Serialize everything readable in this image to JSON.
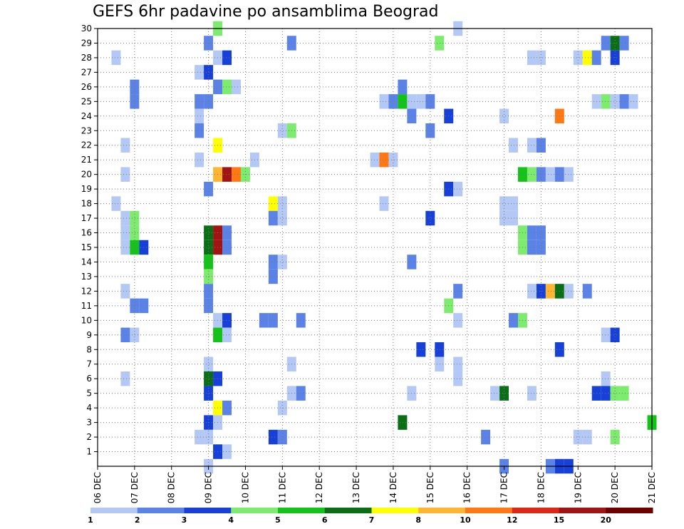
{
  "chart_data": {
    "type": "heatmap",
    "title": "GEFS 6hr padavine po ansamblima Beograd",
    "x_ticks": [
      "06 DEC",
      "07 DEC",
      "08 DEC",
      "09 DEC",
      "10 DEC",
      "11 DEC",
      "12 DEC",
      "13 DEC",
      "14 DEC",
      "15 DEC",
      "16 DEC",
      "17 DEC",
      "18 DEC",
      "19 DEC",
      "20 DEC",
      "21 DEC"
    ],
    "y_ticks": [
      "1",
      "2",
      "3",
      "4",
      "5",
      "6",
      "7",
      "8",
      "9",
      "10",
      "11",
      "12",
      "13",
      "14",
      "15",
      "16",
      "17",
      "18",
      "19",
      "20",
      "21",
      "22",
      "23",
      "24",
      "25",
      "26",
      "27",
      "28",
      "29",
      "30"
    ],
    "x_range_days": [
      6,
      21
    ],
    "y_range": [
      0,
      30
    ],
    "grid": true,
    "colorbar": {
      "boundaries": [
        "1",
        "2",
        "3",
        "4",
        "5",
        "6",
        "7",
        "8",
        "10",
        "12",
        "15",
        "20"
      ],
      "colors": [
        "#b4c8f5",
        "#5b82e6",
        "#1640d8",
        "#7deb6e",
        "#14c318",
        "#0a6e14",
        "#ffff00",
        "#ffb432",
        "#ff7814",
        "#dc2814",
        "#a01414",
        "#6e0000"
      ]
    },
    "cells_note": "each cell: [member, day_of_december_at_time_step, precip_class]",
    "cells": [
      [
        30,
        9.25,
        4
      ],
      [
        30,
        15.75,
        1
      ],
      [
        29,
        9.0,
        2
      ],
      [
        29,
        11.25,
        2
      ],
      [
        29,
        15.25,
        4
      ],
      [
        29,
        19.75,
        2
      ],
      [
        29,
        20.0,
        6
      ],
      [
        29,
        20.25,
        2
      ],
      [
        28,
        6.5,
        1
      ],
      [
        28,
        9.25,
        1
      ],
      [
        28,
        9.5,
        3
      ],
      [
        28,
        17.75,
        1
      ],
      [
        28,
        18.0,
        1
      ],
      [
        28,
        19.0,
        1
      ],
      [
        28,
        19.25,
        7
      ],
      [
        28,
        19.5,
        2
      ],
      [
        28,
        20.0,
        3
      ],
      [
        27,
        8.75,
        1
      ],
      [
        27,
        9.0,
        3
      ],
      [
        26,
        7.0,
        2
      ],
      [
        26,
        9.25,
        2
      ],
      [
        26,
        9.5,
        4
      ],
      [
        26,
        9.75,
        1
      ],
      [
        26,
        14.25,
        2
      ],
      [
        25,
        7.0,
        2
      ],
      [
        25,
        8.75,
        2
      ],
      [
        25,
        9.0,
        2
      ],
      [
        25,
        13.75,
        1
      ],
      [
        25,
        14.0,
        2
      ],
      [
        25,
        14.25,
        5
      ],
      [
        25,
        14.5,
        1
      ],
      [
        25,
        14.75,
        1
      ],
      [
        25,
        15.0,
        2
      ],
      [
        25,
        19.5,
        1
      ],
      [
        25,
        19.75,
        4
      ],
      [
        25,
        20.0,
        1
      ],
      [
        25,
        20.25,
        2
      ],
      [
        25,
        20.5,
        1
      ],
      [
        24,
        8.75,
        1
      ],
      [
        24,
        14.5,
        2
      ],
      [
        24,
        15.5,
        3
      ],
      [
        24,
        17.0,
        1
      ],
      [
        24,
        18.5,
        9
      ],
      [
        23,
        8.75,
        2
      ],
      [
        23,
        11.0,
        1
      ],
      [
        23,
        11.25,
        4
      ],
      [
        23,
        15.0,
        2
      ],
      [
        22,
        6.75,
        1
      ],
      [
        22,
        9.25,
        7
      ],
      [
        22,
        17.25,
        1
      ],
      [
        22,
        17.75,
        1
      ],
      [
        22,
        18.0,
        2
      ],
      [
        21,
        8.75,
        1
      ],
      [
        21,
        10.25,
        1
      ],
      [
        21,
        13.5,
        1
      ],
      [
        21,
        13.75,
        9
      ],
      [
        21,
        14.0,
        1
      ],
      [
        20,
        6.75,
        1
      ],
      [
        20,
        9.25,
        8
      ],
      [
        20,
        9.5,
        11
      ],
      [
        20,
        9.75,
        9
      ],
      [
        20,
        10.0,
        4
      ],
      [
        20,
        17.5,
        5
      ],
      [
        20,
        17.75,
        4
      ],
      [
        20,
        18.0,
        2
      ],
      [
        20,
        18.25,
        1
      ],
      [
        20,
        18.5,
        2
      ],
      [
        20,
        18.75,
        1
      ],
      [
        19,
        9.0,
        2
      ],
      [
        19,
        15.5,
        3
      ],
      [
        19,
        15.75,
        1
      ],
      [
        18,
        6.5,
        1
      ],
      [
        18,
        10.75,
        7
      ],
      [
        18,
        11.0,
        1
      ],
      [
        18,
        13.75,
        1
      ],
      [
        18,
        17.0,
        1
      ],
      [
        18,
        17.25,
        1
      ],
      [
        17,
        6.75,
        1
      ],
      [
        17,
        7.0,
        4
      ],
      [
        17,
        10.75,
        2
      ],
      [
        17,
        11.0,
        1
      ],
      [
        17,
        15.0,
        3
      ],
      [
        17,
        17.0,
        1
      ],
      [
        17,
        17.25,
        1
      ],
      [
        16,
        6.75,
        1
      ],
      [
        16,
        7.0,
        4
      ],
      [
        16,
        9.0,
        6
      ],
      [
        16,
        9.25,
        11
      ],
      [
        16,
        9.5,
        2
      ],
      [
        16,
        17.5,
        4
      ],
      [
        16,
        17.75,
        2
      ],
      [
        16,
        18.0,
        2
      ],
      [
        15,
        6.75,
        1
      ],
      [
        15,
        7.0,
        5
      ],
      [
        15,
        7.25,
        3
      ],
      [
        15,
        9.0,
        6
      ],
      [
        15,
        9.25,
        11
      ],
      [
        15,
        9.5,
        2
      ],
      [
        15,
        17.5,
        4
      ],
      [
        15,
        17.75,
        2
      ],
      [
        15,
        18.0,
        2
      ],
      [
        14,
        9.0,
        5
      ],
      [
        14,
        10.75,
        2
      ],
      [
        14,
        11.0,
        1
      ],
      [
        14,
        14.5,
        2
      ],
      [
        13,
        9.0,
        4
      ],
      [
        13,
        10.75,
        2
      ],
      [
        12,
        6.75,
        1
      ],
      [
        12,
        9.0,
        2
      ],
      [
        12,
        15.75,
        2
      ],
      [
        12,
        17.75,
        1
      ],
      [
        12,
        18.0,
        3
      ],
      [
        12,
        18.25,
        8
      ],
      [
        12,
        18.5,
        6
      ],
      [
        12,
        18.75,
        1
      ],
      [
        12,
        19.25,
        2
      ],
      [
        11,
        7.0,
        2
      ],
      [
        11,
        7.25,
        2
      ],
      [
        11,
        9.0,
        2
      ],
      [
        11,
        15.5,
        4
      ],
      [
        10,
        9.25,
        1
      ],
      [
        10,
        9.5,
        3
      ],
      [
        10,
        10.5,
        2
      ],
      [
        10,
        10.75,
        2
      ],
      [
        10,
        11.5,
        2
      ],
      [
        10,
        15.75,
        1
      ],
      [
        10,
        17.25,
        2
      ],
      [
        10,
        17.5,
        4
      ],
      [
        9,
        6.75,
        2
      ],
      [
        9,
        7.0,
        1
      ],
      [
        9,
        9.25,
        5
      ],
      [
        9,
        9.5,
        1
      ],
      [
        9,
        19.75,
        1
      ],
      [
        9,
        20.0,
        3
      ],
      [
        8,
        14.75,
        3
      ],
      [
        8,
        15.25,
        3
      ],
      [
        8,
        18.5,
        3
      ],
      [
        7,
        9.0,
        1
      ],
      [
        7,
        11.25,
        1
      ],
      [
        7,
        15.25,
        1
      ],
      [
        7,
        15.75,
        1
      ],
      [
        6,
        6.75,
        1
      ],
      [
        6,
        9.0,
        6
      ],
      [
        6,
        9.25,
        3
      ],
      [
        6,
        15.75,
        1
      ],
      [
        6,
        19.75,
        1
      ],
      [
        5,
        9.0,
        3
      ],
      [
        5,
        11.25,
        1
      ],
      [
        5,
        11.5,
        2
      ],
      [
        5,
        14.5,
        1
      ],
      [
        5,
        16.75,
        1
      ],
      [
        5,
        17.0,
        6
      ],
      [
        5,
        17.75,
        1
      ],
      [
        5,
        19.5,
        3
      ],
      [
        5,
        19.75,
        3
      ],
      [
        5,
        20.0,
        4
      ],
      [
        5,
        20.25,
        4
      ],
      [
        4,
        9.25,
        7
      ],
      [
        4,
        9.5,
        2
      ],
      [
        4,
        11.0,
        1
      ],
      [
        3,
        9.0,
        3
      ],
      [
        3,
        9.25,
        1
      ],
      [
        3,
        14.25,
        6
      ],
      [
        3,
        21.0,
        5
      ],
      [
        2,
        8.75,
        1
      ],
      [
        2,
        9.0,
        1
      ],
      [
        2,
        10.75,
        3
      ],
      [
        2,
        11.0,
        2
      ],
      [
        2,
        16.5,
        2
      ],
      [
        2,
        19.0,
        1
      ],
      [
        2,
        19.25,
        1
      ],
      [
        2,
        20.0,
        4
      ],
      [
        1,
        9.25,
        3
      ],
      [
        1,
        9.5,
        1
      ],
      [
        0,
        9.0,
        1
      ],
      [
        0,
        17.0,
        2
      ],
      [
        0,
        18.25,
        2
      ],
      [
        0,
        18.5,
        3
      ],
      [
        0,
        18.75,
        3
      ]
    ]
  }
}
